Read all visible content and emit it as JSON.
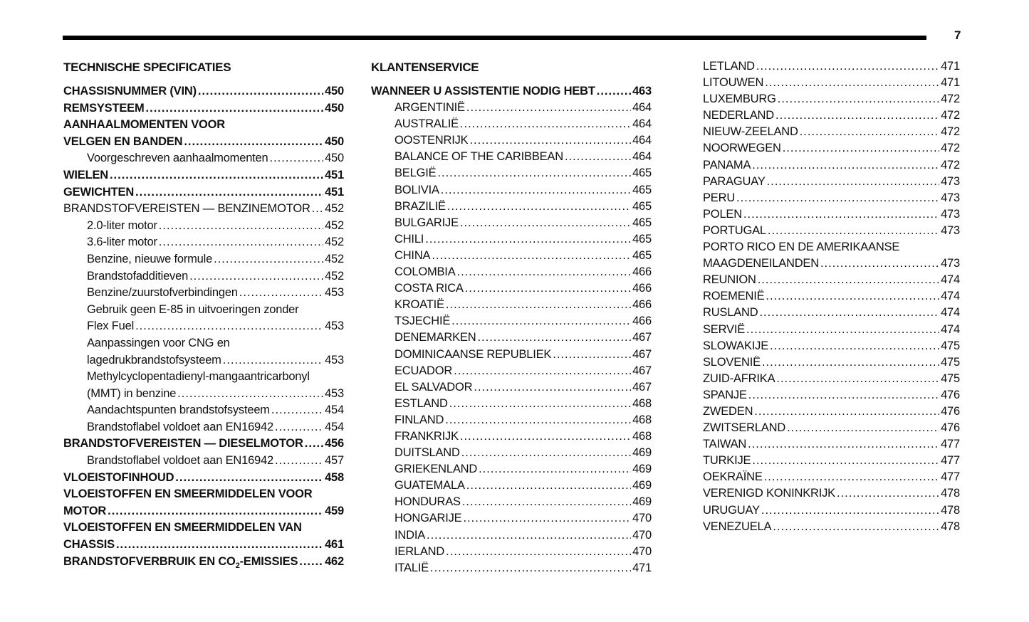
{
  "page_number": "7",
  "columns": [
    {
      "heading": "TECHNISCHE SPECIFICATIES",
      "entries": [
        {
          "label": "CHASSISNUMMER (VIN)",
          "page": "450",
          "bold": true
        },
        {
          "label": "REMSYSTEEM",
          "page": "450",
          "bold": true
        },
        {
          "label": "AANHAALMOMENTEN VOOR",
          "page": "",
          "bold": true
        },
        {
          "label": "VELGEN EN BANDEN",
          "page": "450",
          "bold": true
        },
        {
          "label": "Voorgeschreven aanhaalmomenten",
          "page": "450",
          "indent": true
        },
        {
          "label": "WIELEN",
          "page": "451",
          "bold": true
        },
        {
          "label": "GEWICHTEN",
          "page": "451",
          "bold": true
        },
        {
          "label": "BRANDSTOFVEREISTEN — BENZINEMOTOR",
          "page": "452"
        },
        {
          "label": "2.0-liter motor",
          "page": "452",
          "indent": true
        },
        {
          "label": "3.6-liter motor",
          "page": "452",
          "indent": true
        },
        {
          "label": "Benzine, nieuwe formule",
          "page": "452",
          "indent": true
        },
        {
          "label": "Brandstofadditieven",
          "page": "452",
          "indent": true
        },
        {
          "label": "Benzine/zuurstofverbindingen",
          "page": "453",
          "indent": true
        },
        {
          "label": "Gebruik geen E-85 in uitvoeringen zonder",
          "page": "",
          "indent": true
        },
        {
          "label": "Flex Fuel",
          "page": "453",
          "indent": true
        },
        {
          "label": "Aanpassingen voor CNG en",
          "page": "",
          "indent": true
        },
        {
          "label": "lagedrukbrandstofsysteem",
          "page": "453",
          "indent": true
        },
        {
          "label": "Methylcyclopentadienyl-mangaantricarbonyl",
          "page": "",
          "indent": true
        },
        {
          "label": "(MMT) in benzine",
          "page": "453",
          "indent": true
        },
        {
          "label": "Aandachtspunten brandstofsysteem",
          "page": "454",
          "indent": true
        },
        {
          "label": "Brandstoflabel voldoet aan EN16942",
          "page": "454",
          "indent": true
        },
        {
          "label": "BRANDSTOFVEREISTEN — DIESELMOTOR",
          "page": "456",
          "bold": true
        },
        {
          "label": "Brandstoflabel voldoet aan EN16942",
          "page": "457",
          "indent": true
        },
        {
          "label": "VLOEISTOFINHOUD",
          "page": "458",
          "bold": true
        },
        {
          "label": "VLOEISTOFFEN EN SMEERMIDDELEN VOOR",
          "page": "",
          "bold": true
        },
        {
          "label": "MOTOR",
          "page": "459",
          "bold": true
        },
        {
          "label": "VLOEISTOFFEN EN SMEERMIDDELEN VAN",
          "page": "",
          "bold": true
        },
        {
          "label": "CHASSIS",
          "page": "461",
          "bold": true
        },
        {
          "label": "BRANDSTOFVERBRUIK EN CO",
          "sub": "2",
          "label_after": "-EMISSIES",
          "page": "462",
          "bold": true
        }
      ]
    },
    {
      "heading": "KLANTENSERVICE",
      "entries": [
        {
          "label": "WANNEER U ASSISTENTIE NODIG HEBT",
          "page": "463",
          "bold": true
        },
        {
          "label": "ARGENTINIË",
          "page": "464",
          "indent": true
        },
        {
          "label": "AUSTRALIË",
          "page": "464",
          "indent": true
        },
        {
          "label": "OOSTENRIJK",
          "page": "464",
          "indent": true
        },
        {
          "label": "BALANCE OF THE CARIBBEAN",
          "page": "464",
          "indent": true
        },
        {
          "label": "BELGIË",
          "page": "465",
          "indent": true
        },
        {
          "label": "BOLIVIA",
          "page": "465",
          "indent": true
        },
        {
          "label": "BRAZILIË",
          "page": "465",
          "indent": true
        },
        {
          "label": "BULGARIJE",
          "page": "465",
          "indent": true
        },
        {
          "label": "CHILI",
          "page": "465",
          "indent": true
        },
        {
          "label": "CHINA",
          "page": "465",
          "indent": true
        },
        {
          "label": "COLOMBIA",
          "page": "466",
          "indent": true
        },
        {
          "label": "COSTA RICA",
          "page": "466",
          "indent": true
        },
        {
          "label": "KROATIË",
          "page": "466",
          "indent": true
        },
        {
          "label": "TSJECHIË",
          "page": "466",
          "indent": true
        },
        {
          "label": "DENEMARKEN",
          "page": "467",
          "indent": true
        },
        {
          "label": "DOMINICAANSE REPUBLIEK",
          "page": "467",
          "indent": true
        },
        {
          "label": "ECUADOR",
          "page": "467",
          "indent": true
        },
        {
          "label": "EL SALVADOR",
          "page": "467",
          "indent": true
        },
        {
          "label": "ESTLAND",
          "page": "468",
          "indent": true
        },
        {
          "label": "FINLAND",
          "page": "468",
          "indent": true
        },
        {
          "label": "FRANKRIJK",
          "page": "468",
          "indent": true
        },
        {
          "label": "DUITSLAND",
          "page": "469",
          "indent": true
        },
        {
          "label": "GRIEKENLAND",
          "page": "469",
          "indent": true
        },
        {
          "label": "GUATEMALA",
          "page": "469",
          "indent": true
        },
        {
          "label": "HONDURAS",
          "page": "469",
          "indent": true
        },
        {
          "label": "HONGARIJE",
          "page": "470",
          "indent": true
        },
        {
          "label": "INDIA",
          "page": "470",
          "indent": true
        },
        {
          "label": "IERLAND",
          "page": "470",
          "indent": true
        },
        {
          "label": "ITALIË",
          "page": "471",
          "indent": true
        }
      ]
    },
    {
      "heading": "",
      "entries": [
        {
          "label": "LETLAND",
          "page": "471"
        },
        {
          "label": "LITOUWEN",
          "page": "471"
        },
        {
          "label": "LUXEMBURG",
          "page": "472"
        },
        {
          "label": "NEDERLAND",
          "page": "472"
        },
        {
          "label": "NIEUW-ZEELAND",
          "page": "472"
        },
        {
          "label": "NOORWEGEN",
          "page": "472"
        },
        {
          "label": "PANAMA",
          "page": "472"
        },
        {
          "label": "PARAGUAY",
          "page": "473"
        },
        {
          "label": "PERU",
          "page": "473"
        },
        {
          "label": "POLEN",
          "page": "473"
        },
        {
          "label": "PORTUGAL",
          "page": "473"
        },
        {
          "label": "PORTO RICO EN DE AMERIKAANSE",
          "page": ""
        },
        {
          "label": "MAAGDENEILANDEN",
          "page": "473"
        },
        {
          "label": "REUNION",
          "page": "474"
        },
        {
          "label": "ROEMENIË",
          "page": "474"
        },
        {
          "label": "RUSLAND",
          "page": "474"
        },
        {
          "label": "SERVIË",
          "page": "474"
        },
        {
          "label": "SLOWAKIJE",
          "page": "475"
        },
        {
          "label": "SLOVENIË",
          "page": "475"
        },
        {
          "label": "ZUID-AFRIKA",
          "page": "475"
        },
        {
          "label": "SPANJE",
          "page": "476"
        },
        {
          "label": "ZWEDEN",
          "page": "476"
        },
        {
          "label": "ZWITSERLAND",
          "page": "476"
        },
        {
          "label": "TAIWAN",
          "page": "477"
        },
        {
          "label": "TURKIJE",
          "page": "477"
        },
        {
          "label": "OEKRAÏNE",
          "page": "477"
        },
        {
          "label": "VERENIGD KONINKRIJK",
          "page": "478"
        },
        {
          "label": "URUGUAY",
          "page": "478"
        },
        {
          "label": "VENEZUELA",
          "page": "478"
        }
      ]
    }
  ]
}
